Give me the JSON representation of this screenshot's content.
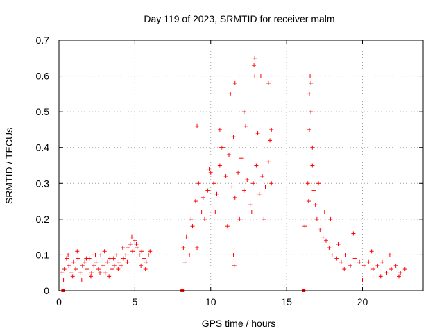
{
  "chart_data": {
    "type": "scatter",
    "title": "Day 119 of 2023, SRMTID for receiver malm",
    "xlabel": "GPS time / hours",
    "ylabel": "SRMTID / TECUs",
    "xlim": [
      0,
      24
    ],
    "ylim": [
      0,
      0.7
    ],
    "grid": true,
    "marker": "+",
    "color": "#ff0000",
    "x_ticks": [
      0,
      5,
      10,
      15,
      20
    ],
    "x_tick_labels": [
      "0",
      "5",
      "10",
      "15",
      "20"
    ],
    "y_ticks": [
      0,
      0.1,
      0.2,
      0.3,
      0.4,
      0.5,
      0.6,
      0.7
    ],
    "y_tick_labels": [
      "0",
      "0.1",
      "0.2",
      "0.3",
      "0.4",
      "0.5",
      "0.6",
      "0.7"
    ],
    "zero_markers_x": [
      0.25,
      8.1,
      16.1
    ],
    "series": [
      {
        "name": "SRMTID",
        "x": [
          0.2,
          0.35,
          0.5,
          0.65,
          0.8,
          0.95,
          1.1,
          1.25,
          1.4,
          1.55,
          1.7,
          1.85,
          2.0,
          2.15,
          2.3,
          2.45,
          2.6,
          2.75,
          2.9,
          3.05,
          3.2,
          3.35,
          3.5,
          3.65,
          3.8,
          3.95,
          4.1,
          4.25,
          4.4,
          4.55,
          4.7,
          4.85,
          5.0,
          5.15,
          5.3,
          5.45,
          5.6,
          5.75,
          5.9,
          6.0,
          0.3,
          0.6,
          0.9,
          1.2,
          1.5,
          1.8,
          2.1,
          2.4,
          2.7,
          3.0,
          3.3,
          3.6,
          3.9,
          4.2,
          4.5,
          4.8,
          5.1,
          5.4,
          5.7,
          8.2,
          8.4,
          8.6,
          8.8,
          9.0,
          9.2,
          9.4,
          9.6,
          9.8,
          10.0,
          10.2,
          10.4,
          10.6,
          10.8,
          11.0,
          11.2,
          11.4,
          11.6,
          11.8,
          12.0,
          12.2,
          12.4,
          12.6,
          12.8,
          13.0,
          13.2,
          13.4,
          13.6,
          13.8,
          14.0,
          8.3,
          8.7,
          9.1,
          9.5,
          9.9,
          10.3,
          10.7,
          11.1,
          11.5,
          11.9,
          12.3,
          12.7,
          13.1,
          13.5,
          13.9,
          9.1,
          10.6,
          11.3,
          11.6,
          12.2,
          12.9,
          13.3,
          13.8,
          14.0,
          12.85,
          12.9,
          11.55,
          11.5,
          16.2,
          16.4,
          16.5,
          16.6,
          16.7,
          16.8,
          16.9,
          17.0,
          17.2,
          17.4,
          17.6,
          17.8,
          18.0,
          18.3,
          18.6,
          18.9,
          19.2,
          19.5,
          19.8,
          20.1,
          20.4,
          20.7,
          21.0,
          21.3,
          21.6,
          21.9,
          22.2,
          22.5,
          22.8,
          16.45,
          16.55,
          16.6,
          16.5,
          16.7,
          17.1,
          17.5,
          17.9,
          18.4,
          18.8,
          19.4,
          20.0,
          20.6,
          21.2,
          21.8,
          22.4
        ],
        "y": [
          0.05,
          0.06,
          0.09,
          0.07,
          0.05,
          0.08,
          0.06,
          0.09,
          0.05,
          0.07,
          0.08,
          0.06,
          0.09,
          0.05,
          0.07,
          0.08,
          0.06,
          0.1,
          0.07,
          0.05,
          0.08,
          0.09,
          0.06,
          0.07,
          0.1,
          0.08,
          0.07,
          0.09,
          0.1,
          0.12,
          0.13,
          0.11,
          0.14,
          0.12,
          0.1,
          0.11,
          0.09,
          0.08,
          0.1,
          0.11,
          0.03,
          0.1,
          0.04,
          0.11,
          0.03,
          0.09,
          0.04,
          0.1,
          0.05,
          0.11,
          0.04,
          0.09,
          0.06,
          0.12,
          0.08,
          0.15,
          0.13,
          0.07,
          0.06,
          0.12,
          0.15,
          0.1,
          0.18,
          0.25,
          0.3,
          0.22,
          0.2,
          0.28,
          0.33,
          0.3,
          0.27,
          0.35,
          0.4,
          0.32,
          0.38,
          0.29,
          0.26,
          0.33,
          0.37,
          0.28,
          0.31,
          0.24,
          0.3,
          0.35,
          0.27,
          0.32,
          0.29,
          0.36,
          0.3,
          0.08,
          0.2,
          0.12,
          0.26,
          0.34,
          0.22,
          0.4,
          0.18,
          0.43,
          0.2,
          0.46,
          0.22,
          0.44,
          0.2,
          0.42,
          0.46,
          0.45,
          0.55,
          0.58,
          0.5,
          0.65,
          0.6,
          0.58,
          0.45,
          0.63,
          0.6,
          0.07,
          0.1,
          0.18,
          0.3,
          0.45,
          0.58,
          0.35,
          0.28,
          0.24,
          0.2,
          0.17,
          0.15,
          0.14,
          0.12,
          0.1,
          0.09,
          0.08,
          0.1,
          0.07,
          0.09,
          0.08,
          0.07,
          0.08,
          0.06,
          0.07,
          0.08,
          0.05,
          0.06,
          0.07,
          0.05,
          0.06,
          0.25,
          0.6,
          0.5,
          0.55,
          0.4,
          0.3,
          0.22,
          0.2,
          0.13,
          0.06,
          0.16,
          0.03,
          0.11,
          0.04,
          0.1,
          0.04
        ]
      }
    ]
  }
}
